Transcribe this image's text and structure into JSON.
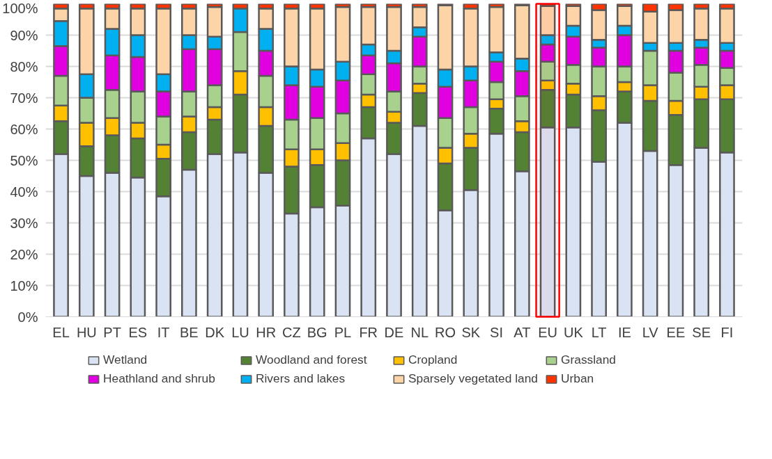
{
  "chart_data": {
    "type": "bar",
    "stacked": true,
    "categories": [
      "EL",
      "HU",
      "PT",
      "ES",
      "IT",
      "BE",
      "DK",
      "LU",
      "HR",
      "CZ",
      "BG",
      "PL",
      "FR",
      "DE",
      "NL",
      "RO",
      "SK",
      "SI",
      "AT",
      "EU",
      "UK",
      "LT",
      "IE",
      "LV",
      "EE",
      "SE",
      "FI"
    ],
    "series": [
      {
        "name": "Wetland",
        "color": "#dae3f3",
        "values": [
          52,
          45,
          46,
          44.5,
          38.5,
          47,
          52,
          52.5,
          46,
          33,
          35,
          35.5,
          57,
          52,
          61,
          34,
          40.5,
          58.5,
          46.5,
          60.5,
          60.5,
          49.5,
          62,
          53,
          48.5,
          54,
          52.5
        ]
      },
      {
        "name": "Woodland and forest",
        "color": "#548235",
        "values": [
          10.5,
          9.5,
          12,
          12.5,
          12,
          12,
          11,
          18.5,
          15,
          15,
          13.5,
          14.5,
          10,
          10,
          10.5,
          15,
          13.5,
          8,
          12.5,
          12,
          10.5,
          16.5,
          10,
          16,
          16,
          15.5,
          17
        ]
      },
      {
        "name": "Cropland",
        "color": "#ffc000",
        "values": [
          5,
          7.5,
          5.5,
          5,
          4.5,
          5,
          4,
          7.5,
          6,
          5.5,
          5,
          5.5,
          4,
          3.5,
          3,
          5,
          4.5,
          3,
          3.5,
          3,
          3.5,
          4.5,
          3,
          5,
          4.5,
          4,
          4.5
        ]
      },
      {
        "name": "Grassland",
        "color": "#a9d18e",
        "values": [
          9.5,
          8,
          9,
          10,
          9,
          8,
          7,
          12.5,
          10,
          9.5,
          10,
          9.5,
          6.5,
          6.5,
          5.5,
          9.5,
          8.5,
          5.5,
          8,
          6,
          6,
          9.5,
          5,
          11,
          9,
          7,
          5.5
        ]
      },
      {
        "name": "Heathland and shrub",
        "color": "#e000e0",
        "values": [
          9.5,
          0,
          11,
          11,
          8,
          13.5,
          11.5,
          0,
          8,
          11,
          10,
          10.5,
          6,
          9,
          9.5,
          10,
          8.5,
          6.5,
          8,
          5.5,
          9,
          6,
          10,
          0,
          7,
          5.5,
          5.5
        ]
      },
      {
        "name": "Rivers and lakes",
        "color": "#00b0f0",
        "values": [
          8,
          7.5,
          8.5,
          7,
          5.5,
          4.5,
          4,
          7.5,
          7,
          6,
          5.5,
          6,
          3.5,
          4,
          3,
          5.5,
          4.5,
          3,
          4,
          3,
          3.5,
          2.5,
          3,
          2.5,
          2.5,
          2.5,
          2.5
        ]
      },
      {
        "name": "Sparsely vegetated land",
        "color": "#fdd3a8",
        "values": [
          4,
          21,
          6.5,
          8.5,
          21,
          8.5,
          9.5,
          0,
          6.5,
          18.5,
          19.5,
          17.5,
          12,
          14,
          6.5,
          20.5,
          18.5,
          14.5,
          17,
          9.3,
          6.3,
          9.5,
          6.3,
          10,
          10.5,
          10,
          11
        ]
      },
      {
        "name": "Urban",
        "color": "#ff3300",
        "values": [
          1.5,
          1.5,
          1.5,
          1.5,
          1.5,
          1.5,
          1,
          1.5,
          1.5,
          1.5,
          1.5,
          1,
          1,
          1,
          1,
          0.5,
          1.5,
          1,
          0.5,
          0.7,
          0.7,
          2,
          0.7,
          2.5,
          2,
          1.5,
          1.5
        ]
      }
    ],
    "ylim": [
      0,
      100
    ],
    "yticks": [
      {
        "value": 0,
        "label": "0%"
      },
      {
        "value": 10,
        "label": "10%"
      },
      {
        "value": 20,
        "label": "20%"
      },
      {
        "value": 30,
        "label": "30%"
      },
      {
        "value": 40,
        "label": "40%"
      },
      {
        "value": 50,
        "label": "50%"
      },
      {
        "value": 60,
        "label": "60%"
      },
      {
        "value": 70,
        "label": "70%"
      },
      {
        "value": 80,
        "label": "80%"
      },
      {
        "value": 90,
        "label": "90%"
      },
      {
        "value": 100,
        "label": "100%"
      }
    ],
    "bands": [
      {
        "axis": "x",
        "from": "EU",
        "to": "EU",
        "color": "#ff0000"
      }
    ],
    "grid": "y",
    "legend": "bottom"
  }
}
